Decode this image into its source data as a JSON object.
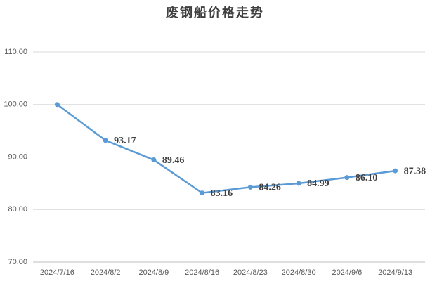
{
  "chart_data": {
    "type": "line",
    "title": "废钢船价格走势",
    "categories": [
      "2024/7/16",
      "2024/8/2",
      "2024/8/9",
      "2024/8/16",
      "2024/8/23",
      "2024/8/30",
      "2024/9/6",
      "2024/9/13"
    ],
    "series": [
      {
        "color": "#5b9bd5",
        "values": [
          100,
          93.17,
          89.46,
          83.16,
          84.26,
          84.99,
          86.1,
          87.38
        ],
        "value_labels": [
          null,
          "93.17",
          "89.46",
          "83.16",
          "84.26",
          "84.99",
          "86.10",
          "87.38"
        ]
      }
    ],
    "ylim": [
      70,
      110
    ],
    "yticks": [
      {
        "value": 70,
        "label": "70.00"
      },
      {
        "value": 80,
        "label": "80.00"
      },
      {
        "value": 90,
        "label": "90.00"
      },
      {
        "value": 100,
        "label": "100.00"
      },
      {
        "value": 110,
        "label": "110.00"
      }
    ],
    "grid": true
  }
}
